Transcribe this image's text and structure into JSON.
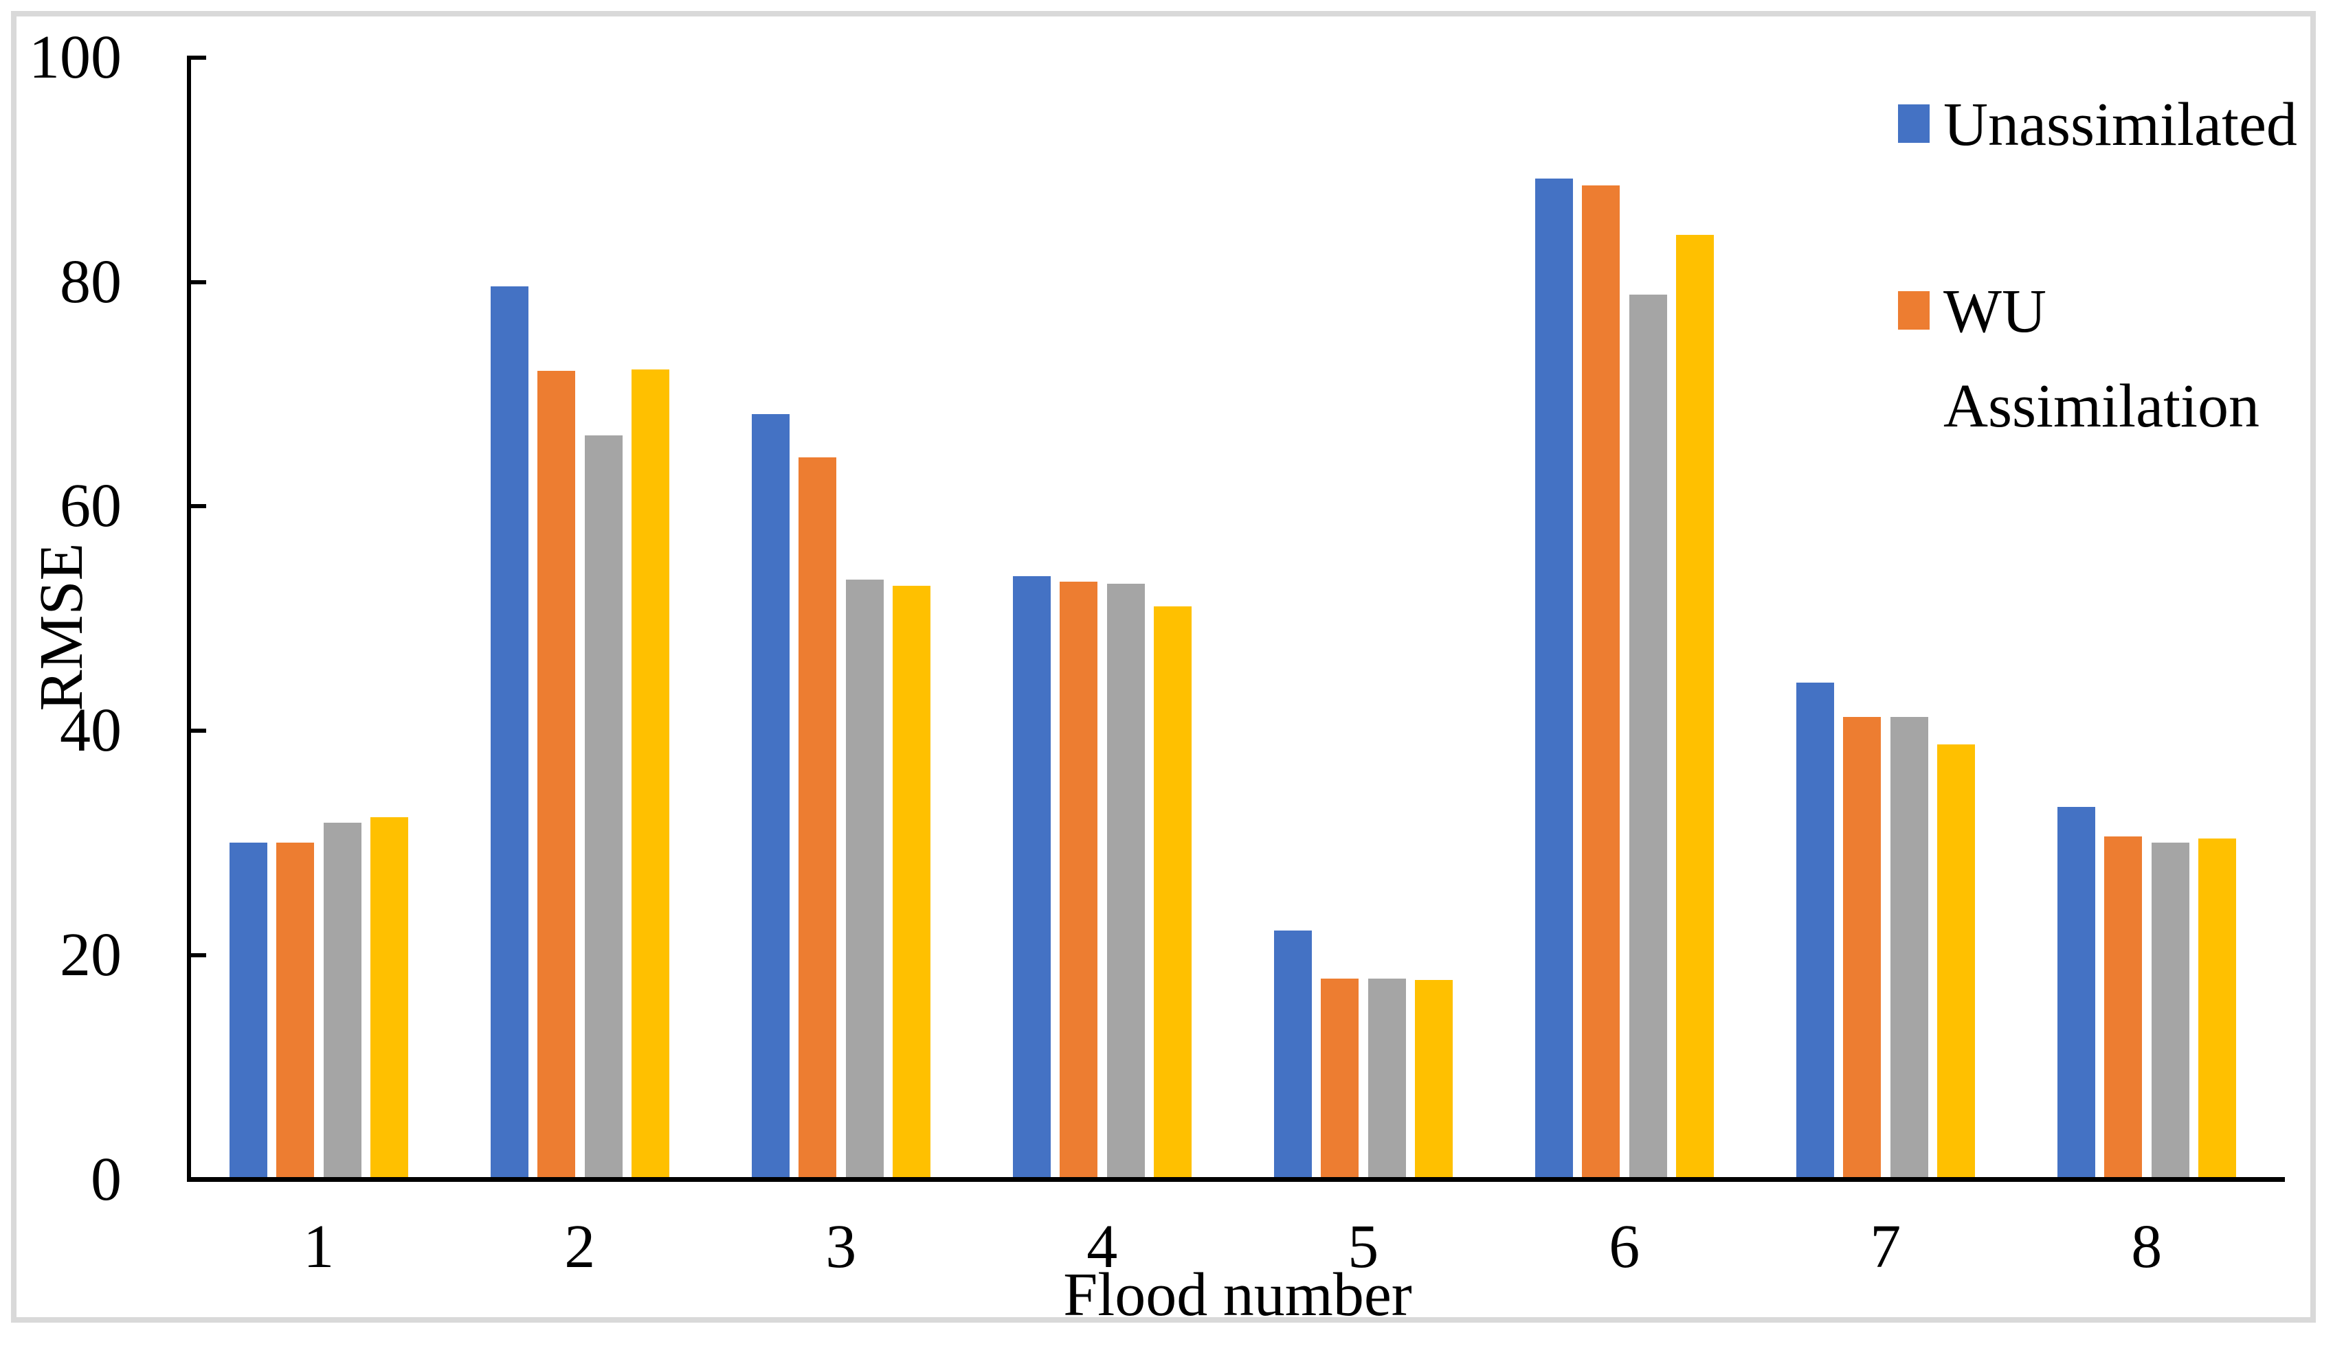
{
  "chart_data": {
    "type": "bar",
    "title": "",
    "xlabel": "Flood number",
    "ylabel": "RMSE",
    "categories": [
      "1",
      "2",
      "3",
      "4",
      "5",
      "6",
      "7",
      "8"
    ],
    "series": [
      {
        "name": "Unassimilated",
        "color": "#4472C4",
        "values": [
          30.0,
          79.6,
          68.2,
          53.8,
          22.2,
          89.2,
          44.3,
          33.2
        ]
      },
      {
        "name": "WU Assimilation",
        "color": "#ED7D31",
        "values": [
          30.0,
          72.1,
          64.4,
          53.3,
          17.9,
          88.6,
          41.2,
          30.6
        ]
      },
      {
        "name": "",
        "color": "#A5A5A5",
        "values": [
          31.8,
          66.3,
          53.5,
          53.1,
          17.9,
          78.9,
          41.2,
          30.0
        ]
      },
      {
        "name": "",
        "color": "#FFC000",
        "values": [
          32.3,
          72.2,
          52.9,
          51.1,
          17.8,
          84.2,
          38.8,
          30.4
        ]
      }
    ],
    "ylim": [
      0,
      100
    ],
    "yticks": [
      0,
      20,
      40,
      60,
      80,
      100
    ],
    "grid": false,
    "legend_position": "top-right",
    "legend": [
      {
        "label": "Unassimilated",
        "lines": [
          "Unassimilated"
        ],
        "color": "#4472C4"
      },
      {
        "label": "WU Assimilation",
        "lines": [
          "WU",
          "Assimilation"
        ],
        "color": "#ED7D31"
      }
    ],
    "colors": {
      "axis": "#000000",
      "frame_border": "#D9D9D9",
      "background": "#FFFFFF"
    }
  }
}
